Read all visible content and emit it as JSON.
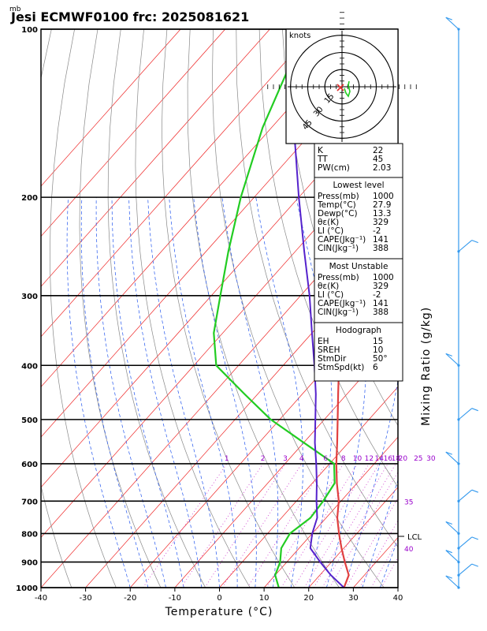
{
  "header": {
    "unit_label": "mb",
    "title": "Jesi ECMWF0100  frc: 2025081621"
  },
  "axes": {
    "xlabel": "Temperature (°C)",
    "right_label": "Mixing Ratio (g/kg)",
    "lcl_label": "LCL"
  },
  "mixing_ratio_labels": [
    "1",
    "2",
    "3",
    "4",
    "6",
    "8",
    "10",
    "12",
    "14",
    "16",
    "18",
    "20",
    "25",
    "30"
  ],
  "mixing_ratio_right": [
    "35",
    "40"
  ],
  "hodograph": {
    "units_label": "knots",
    "ring_labels": [
      "15",
      "30",
      "45"
    ]
  },
  "indices": {
    "top": [
      {
        "label": "K",
        "value": "22"
      },
      {
        "label": "TT",
        "value": "45"
      },
      {
        "label": "PW(cm)",
        "value": "2.03"
      }
    ],
    "lowest_level": {
      "title": "Lowest level",
      "rows": [
        {
          "label": "Press(mb)",
          "value": "1000"
        },
        {
          "label": "Temp(°C)",
          "value": "27.9"
        },
        {
          "label": "Dewp(°C)",
          "value": "13.3"
        },
        {
          "label": "θε(K)",
          "value": "329"
        },
        {
          "label": "LI (°C)",
          "value": "-2"
        },
        {
          "label": "CAPE(Jkg⁻¹)",
          "value": "141"
        },
        {
          "label": "CIN(Jkg⁻¹)",
          "value": "388"
        }
      ]
    },
    "most_unstable": {
      "title": "Most Unstable",
      "rows": [
        {
          "label": "Press(mb)",
          "value": "1000"
        },
        {
          "label": "θε(K)",
          "value": "329"
        },
        {
          "label": "LI (°C)",
          "value": "-2"
        },
        {
          "label": "CAPE(Jkg⁻¹)",
          "value": "141"
        },
        {
          "label": "CIN(Jkg⁻¹)",
          "value": "388"
        }
      ]
    },
    "hodograph_block": {
      "title": "Hodograph",
      "rows": [
        {
          "label": "EH",
          "value": "15"
        },
        {
          "label": "SREH",
          "value": "10"
        },
        {
          "label": "StmDir",
          "value": "50°"
        },
        {
          "label": "StmSpd(kt)",
          "value": "6"
        }
      ]
    }
  },
  "colors": {
    "temperature": "#e04040",
    "dewpoint": "#22cc22",
    "parcel": "#5522cc",
    "isotherm": "#ee2222",
    "dry_adiabat": "#888888",
    "moist_adiabat": "#2255ee",
    "mixing_ratio": "#cc33cc",
    "wind_barb": "#3399ee"
  },
  "chart_data": {
    "type": "line",
    "diagram": "skew-T log-p",
    "x_axis": {
      "label": "Temperature (°C)",
      "ticks": [
        -40,
        -30,
        -20,
        -10,
        0,
        10,
        20,
        30,
        40
      ],
      "range": [
        -40,
        40
      ]
    },
    "y_axis": {
      "label": "mb",
      "scale": "log",
      "ticks": [
        100,
        200,
        300,
        400,
        500,
        600,
        700,
        800,
        900,
        1000
      ],
      "range": [
        1000,
        100
      ]
    },
    "series": [
      {
        "role": "temperature",
        "points": [
          [
            1000,
            27.9
          ],
          [
            950,
            26.5
          ],
          [
            900,
            23
          ],
          [
            850,
            19.5
          ],
          [
            800,
            16
          ],
          [
            750,
            12.5
          ],
          [
            700,
            9.5
          ],
          [
            650,
            5.5
          ],
          [
            600,
            1.5
          ],
          [
            550,
            -2.5
          ],
          [
            500,
            -7
          ],
          [
            450,
            -12
          ],
          [
            400,
            -17.5
          ],
          [
            350,
            -24.5
          ],
          [
            300,
            -33
          ],
          [
            250,
            -43
          ],
          [
            200,
            -46
          ],
          [
            150,
            -47
          ],
          [
            100,
            -48
          ]
        ]
      },
      {
        "role": "dewpoint",
        "points": [
          [
            1000,
            13.3
          ],
          [
            950,
            10
          ],
          [
            900,
            8.5
          ],
          [
            850,
            6
          ],
          [
            800,
            5
          ],
          [
            750,
            6.5
          ],
          [
            700,
            6
          ],
          [
            650,
            5
          ],
          [
            600,
            1
          ],
          [
            550,
            -10
          ],
          [
            500,
            -22
          ],
          [
            450,
            -33
          ],
          [
            400,
            -45
          ],
          [
            350,
            -52
          ],
          [
            300,
            -58
          ],
          [
            250,
            -65
          ],
          [
            200,
            -73
          ],
          [
            150,
            -82
          ],
          [
            100,
            -92
          ]
        ]
      },
      {
        "role": "parcel",
        "points": [
          [
            1000,
            27.9
          ],
          [
            950,
            22.5
          ],
          [
            900,
            17.5
          ],
          [
            850,
            12.5
          ],
          [
            800,
            10
          ],
          [
            750,
            8
          ],
          [
            700,
            4.5
          ],
          [
            650,
            1
          ],
          [
            600,
            -3
          ],
          [
            550,
            -7.5
          ],
          [
            500,
            -12
          ],
          [
            450,
            -17
          ],
          [
            400,
            -23
          ],
          [
            350,
            -30
          ],
          [
            300,
            -38
          ],
          [
            250,
            -48
          ],
          [
            200,
            -60
          ],
          [
            150,
            -75
          ],
          [
            130,
            -82
          ]
        ]
      }
    ],
    "mixing_ratios_gkg": [
      1,
      2,
      3,
      4,
      6,
      8,
      10,
      12,
      14,
      16,
      18,
      20,
      25,
      30,
      35,
      40
    ],
    "lcl_pressure_mb": 800,
    "hodograph": {
      "rings_kt": [
        15,
        30,
        45
      ],
      "storm_dir_deg": 50,
      "storm_speed_kt": 6
    },
    "wind_profile": {
      "scale": "mixing ratio axis",
      "barbs_at_mb": [
        1000,
        950,
        900,
        850,
        800,
        700,
        600,
        500,
        400,
        250,
        100
      ]
    }
  }
}
